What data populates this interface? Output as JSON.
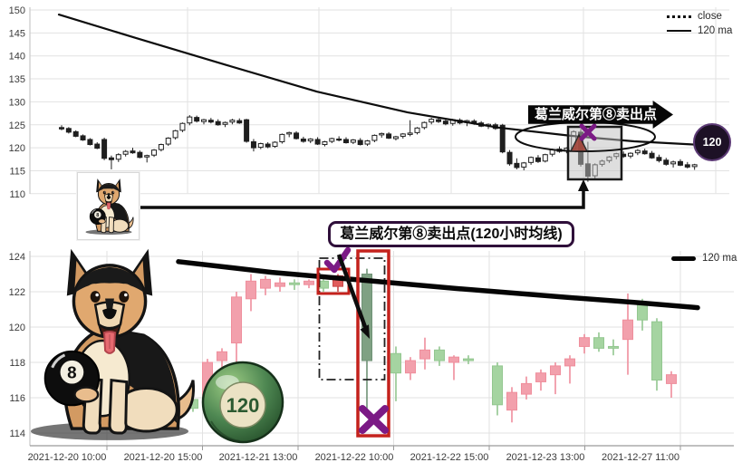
{
  "chart_data": [
    {
      "type": "candlestick",
      "panel": "top",
      "legend": [
        {
          "label": "close",
          "line_style": "dotted"
        },
        {
          "label": "120 ma",
          "line_style": "solid"
        }
      ],
      "y_ticks": [
        150,
        145,
        140,
        135,
        130,
        125,
        120,
        115,
        110
      ],
      "ylim": [
        108,
        151
      ],
      "grid": true,
      "candles_ohlc": [
        [
          124.4,
          124.9,
          123.8,
          124.1
        ],
        [
          124.2,
          124.5,
          123.1,
          123.4
        ],
        [
          123.5,
          123.8,
          122.3,
          122.5
        ],
        [
          122.6,
          122.9,
          121.5,
          121.7
        ],
        [
          121.8,
          122.1,
          120.5,
          120.7
        ],
        [
          120.8,
          121.2,
          119.7,
          119.9
        ],
        [
          121.8,
          122.2,
          117.3,
          117.7
        ],
        [
          117.8,
          118.3,
          115.3,
          117.4
        ],
        [
          117.5,
          118.8,
          116.9,
          118.5
        ],
        [
          118.6,
          119.5,
          118.1,
          119.2
        ],
        [
          119.3,
          120.0,
          118.7,
          118.9
        ],
        [
          119.0,
          119.4,
          117.7,
          117.9
        ],
        [
          118.0,
          118.5,
          116.8,
          118.3
        ],
        [
          118.4,
          119.7,
          118.0,
          119.5
        ],
        [
          119.6,
          120.9,
          119.2,
          120.7
        ],
        [
          120.8,
          122.3,
          120.4,
          122.1
        ],
        [
          122.2,
          123.9,
          121.8,
          123.7
        ],
        [
          123.8,
          125.5,
          123.4,
          125.3
        ],
        [
          125.4,
          127.1,
          124.9,
          126.7
        ],
        [
          126.6,
          127.0,
          125.5,
          125.8
        ],
        [
          125.7,
          126.3,
          125.1,
          126.1
        ],
        [
          126.0,
          126.5,
          125.3,
          125.6
        ],
        [
          125.7,
          126.2,
          124.8,
          125.0
        ],
        [
          125.1,
          125.7,
          124.5,
          125.5
        ],
        [
          125.6,
          126.3,
          125.1,
          126.0
        ],
        [
          125.9,
          126.4,
          125.2,
          125.4
        ],
        [
          126.1,
          126.3,
          121.1,
          121.4
        ],
        [
          121.3,
          121.9,
          119.2,
          120.0
        ],
        [
          120.1,
          121.1,
          119.7,
          120.9
        ],
        [
          120.8,
          121.2,
          119.9,
          120.2
        ],
        [
          120.3,
          121.4,
          120.0,
          121.2
        ],
        [
          121.3,
          123.1,
          120.9,
          122.9
        ],
        [
          123.0,
          123.5,
          122.3,
          123.3
        ],
        [
          123.2,
          123.6,
          121.8,
          122.0
        ],
        [
          121.9,
          122.4,
          121.1,
          121.4
        ],
        [
          121.5,
          122.1,
          121.0,
          121.9
        ],
        [
          121.8,
          122.3,
          120.6,
          120.8
        ],
        [
          120.7,
          121.5,
          120.3,
          121.3
        ],
        [
          121.4,
          122.2,
          121.0,
          122.0
        ],
        [
          121.9,
          122.5,
          121.4,
          121.7
        ],
        [
          121.8,
          122.3,
          120.9,
          121.1
        ],
        [
          121.2,
          121.9,
          120.8,
          121.7
        ],
        [
          121.6,
          122.1,
          120.5,
          120.7
        ],
        [
          120.8,
          121.7,
          120.4,
          121.5
        ],
        [
          121.6,
          122.9,
          121.2,
          122.7
        ],
        [
          122.8,
          123.3,
          122.2,
          123.1
        ],
        [
          123.0,
          123.4,
          121.9,
          122.1
        ],
        [
          122.0,
          122.6,
          121.6,
          122.4
        ],
        [
          122.5,
          123.2,
          122.0,
          123.0
        ],
        [
          122.9,
          126.0,
          122.5,
          123.2
        ],
        [
          123.3,
          124.5,
          122.9,
          124.3
        ],
        [
          124.4,
          125.7,
          124.0,
          125.5
        ],
        [
          125.6,
          126.5,
          125.1,
          126.2
        ],
        [
          126.1,
          126.6,
          125.4,
          125.7
        ],
        [
          125.8,
          126.2,
          124.9,
          125.2
        ],
        [
          125.3,
          126.3,
          124.8,
          126.1
        ],
        [
          126.0,
          126.4,
          125.1,
          125.4
        ],
        [
          125.5,
          126.1,
          124.7,
          125.9
        ],
        [
          125.8,
          126.2,
          125.0,
          125.3
        ],
        [
          125.4,
          125.8,
          124.5,
          124.7
        ],
        [
          124.8,
          125.3,
          124.1,
          125.1
        ],
        [
          125.0,
          125.4,
          123.9,
          124.2
        ],
        [
          124.9,
          125.2,
          118.8,
          119.1
        ],
        [
          119.0,
          119.5,
          116.1,
          116.5
        ],
        [
          116.6,
          117.7,
          115.3,
          115.7
        ],
        [
          115.8,
          116.9,
          115.1,
          116.7
        ],
        [
          116.8,
          118.1,
          116.3,
          117.9
        ],
        [
          117.8,
          118.4,
          116.7,
          117.0
        ],
        [
          117.1,
          118.7,
          116.8,
          118.5
        ],
        [
          118.6,
          119.8,
          118.1,
          119.6
        ],
        [
          119.7,
          120.3,
          118.9,
          119.2
        ],
        [
          119.3,
          120.1,
          118.8,
          119.9
        ],
        [
          119.8,
          123.8,
          119.4,
          123.5
        ],
        [
          123.4,
          124.1,
          115.9,
          116.4
        ],
        [
          116.5,
          121.3,
          112.6,
          113.8
        ],
        [
          113.9,
          116.6,
          113.2,
          116.3
        ],
        [
          116.4,
          117.4,
          115.9,
          117.1
        ],
        [
          117.2,
          118.2,
          116.7,
          118.0
        ],
        [
          118.1,
          118.9,
          117.5,
          118.7
        ],
        [
          118.6,
          119.2,
          117.8,
          118.1
        ],
        [
          118.2,
          119.0,
          117.7,
          118.8
        ],
        [
          118.9,
          119.7,
          118.4,
          119.4
        ],
        [
          119.3,
          119.8,
          118.5,
          118.7
        ],
        [
          118.8,
          119.3,
          117.6,
          117.8
        ],
        [
          117.9,
          118.5,
          116.8,
          117.2
        ],
        [
          117.3,
          117.8,
          116.1,
          116.4
        ],
        [
          116.5,
          117.2,
          115.7,
          116.9
        ],
        [
          117.0,
          117.5,
          116.0,
          116.2
        ],
        [
          116.3,
          116.9,
          115.5,
          115.8
        ],
        [
          115.9,
          116.5,
          115.2,
          116.3
        ]
      ],
      "ma_120": [
        [
          65,
          149.0
        ],
        [
          150,
          143.9
        ],
        [
          250,
          138.0
        ],
        [
          350,
          132.2
        ],
        [
          450,
          127.7
        ],
        [
          550,
          124.4
        ],
        [
          630,
          122.6
        ],
        [
          700,
          121.4
        ],
        [
          767,
          120.7
        ]
      ],
      "annotations": {
        "banner": "葛兰威尔第⑧卖出点",
        "badge": "120"
      }
    },
    {
      "type": "candlestick",
      "panel": "bottom",
      "legend": [
        {
          "label": "120 ma",
          "line_style": "solid-thick"
        }
      ],
      "y_ticks": [
        124,
        122,
        120,
        118,
        116,
        114
      ],
      "ylim": [
        113.5,
        124.8
      ],
      "x_ticks": [
        "2021-12-20 10:00",
        "2021-12-20 15:00",
        "2021-12-21 13:00",
        "2021-12-22 10:00",
        "2021-12-22 15:00",
        "2021-12-23 13:00",
        "2021-12-27 11:00"
      ],
      "grid": true,
      "candles": [
        [
          197,
          "p",
          115.2,
          116.0,
          114.8,
          115.8
        ],
        [
          213,
          "g",
          115.9,
          116.1,
          115.2,
          115.4
        ],
        [
          229,
          "p",
          115.5,
          118.2,
          115.3,
          118.0
        ],
        [
          245,
          "p",
          118.1,
          118.8,
          117.5,
          118.6
        ],
        [
          261,
          "p",
          119.1,
          122.0,
          118.0,
          121.7
        ],
        [
          277,
          "p",
          121.6,
          123.0,
          120.9,
          122.6
        ],
        [
          293,
          "p",
          122.2,
          122.9,
          121.8,
          122.7
        ],
        [
          309,
          "p",
          122.3,
          122.8,
          122.0,
          122.5
        ],
        [
          325,
          "g",
          122.5,
          122.7,
          122.1,
          122.4
        ],
        [
          341,
          "p",
          122.4,
          122.7,
          122.2,
          122.6
        ],
        [
          357,
          "g",
          122.6,
          122.8,
          122.0,
          122.2
        ],
        [
          373,
          "P",
          122.3,
          123.0,
          122.0,
          122.9
        ],
        [
          405,
          "G",
          123.0,
          123.3,
          115.3,
          118.1
        ],
        [
          437,
          "g",
          118.5,
          118.9,
          115.8,
          117.4
        ],
        [
          453,
          "p",
          117.4,
          118.3,
          117.0,
          118.1
        ],
        [
          469,
          "p",
          118.2,
          119.4,
          117.6,
          118.7
        ],
        [
          485,
          "g",
          118.7,
          118.9,
          117.8,
          118.1
        ],
        [
          501,
          "p",
          118.0,
          118.4,
          117.0,
          118.3
        ],
        [
          517,
          "g",
          118.2,
          118.4,
          117.9,
          118.1
        ],
        [
          549,
          "g",
          117.8,
          118.0,
          115.0,
          115.6
        ],
        [
          565,
          "p",
          115.3,
          116.6,
          114.6,
          116.3
        ],
        [
          581,
          "p",
          116.2,
          117.2,
          115.9,
          116.8
        ],
        [
          597,
          "p",
          116.9,
          117.6,
          116.4,
          117.4
        ],
        [
          613,
          "p",
          117.3,
          118.0,
          116.2,
          117.8
        ],
        [
          629,
          "p",
          117.8,
          118.4,
          116.8,
          118.2
        ],
        [
          645,
          "p",
          118.9,
          119.6,
          118.5,
          119.4
        ],
        [
          661,
          "g",
          119.4,
          119.7,
          118.6,
          118.8
        ],
        [
          677,
          "g",
          118.8,
          119.3,
          118.4,
          118.9
        ],
        [
          693,
          "p",
          119.3,
          121.9,
          117.3,
          120.4
        ],
        [
          709,
          "g",
          121.4,
          121.6,
          119.8,
          120.4
        ],
        [
          725,
          "g",
          120.3,
          120.5,
          116.4,
          117.0
        ],
        [
          741,
          "p",
          116.8,
          117.5,
          116.0,
          117.3
        ]
      ],
      "ma_120": [
        [
          197,
          123.7
        ],
        [
          300,
          123.1
        ],
        [
          400,
          122.65
        ],
        [
          500,
          122.2
        ],
        [
          620,
          121.7
        ],
        [
          700,
          121.4
        ],
        [
          770,
          121.1
        ]
      ],
      "annotations": {
        "banner": "葛兰威尔第⑧卖出点(120小时均线)"
      }
    }
  ],
  "decorations": {
    "dog": "cartoon-german-shepherd-holding-8-ball",
    "ball8_label": "8",
    "ball120_label": "120"
  },
  "colors": {
    "up": "#f2a0ac",
    "down": "#a5d4a1",
    "up_marked": "#e05c5c",
    "down_marked": "#7fa183",
    "line": "#111111",
    "highlight_box": "#c4211c",
    "purple_marker": "#7b1a85",
    "grid": "#e2e2e2",
    "banner_bg": "#060606",
    "pill_border": "#2f0f3a",
    "badge_bg": "#1d1126"
  }
}
